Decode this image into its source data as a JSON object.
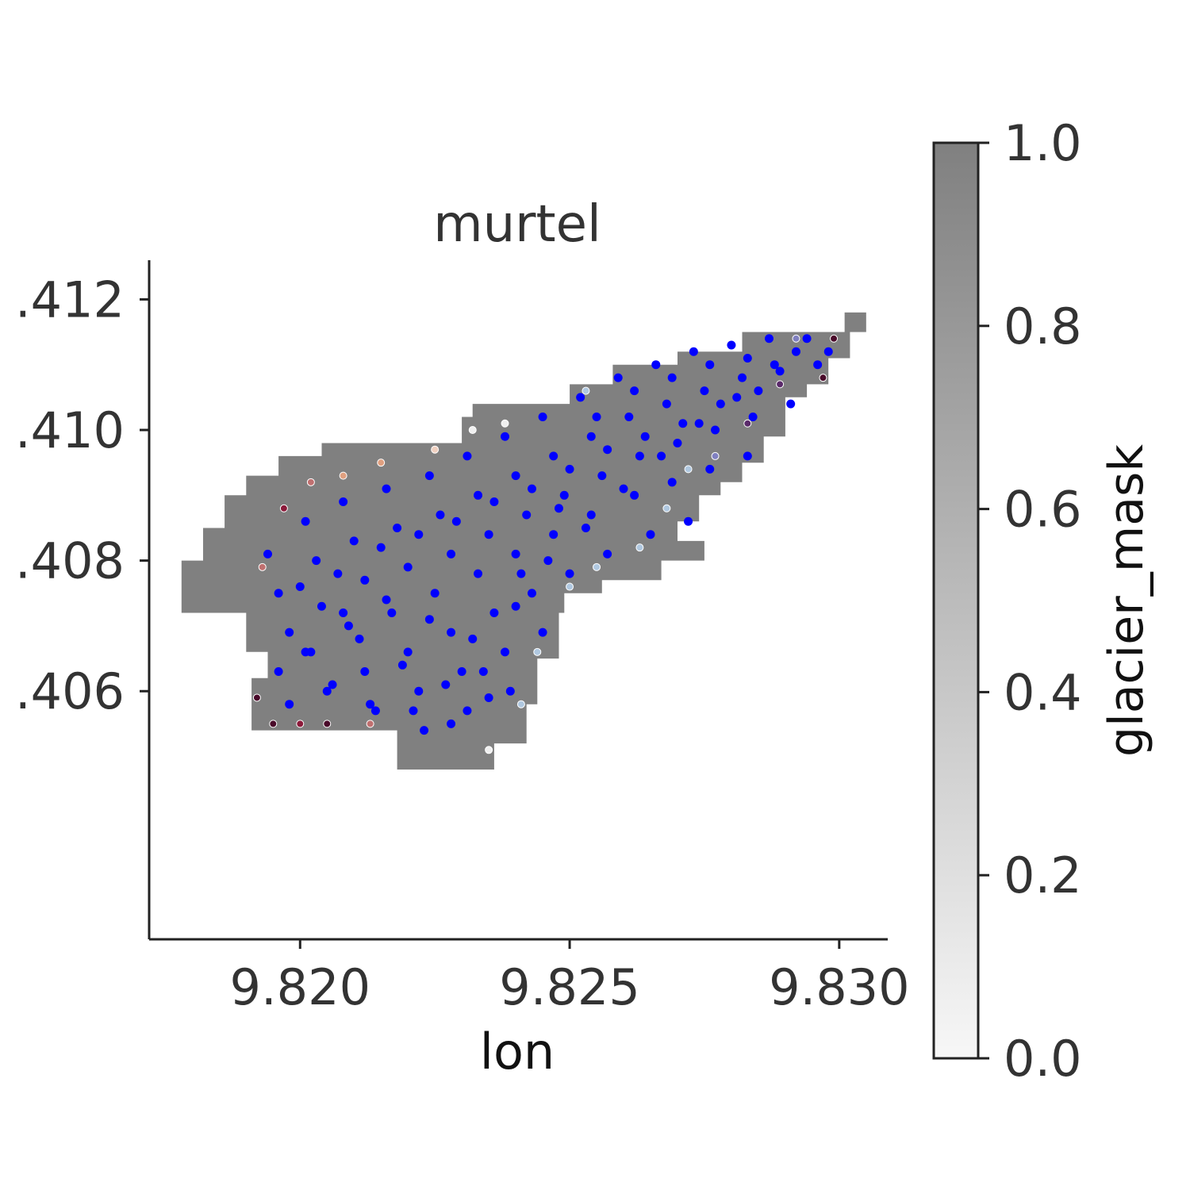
{
  "chart_data": {
    "type": "scatter",
    "title": "murtel",
    "xlabel": "lon",
    "ylabel": "",
    "xlim": [
      9.8172,
      9.8309
    ],
    "ylim": [
      46.4022,
      46.4126
    ],
    "x_ticks": [
      "9.820",
      "9.825",
      "9.830"
    ],
    "x_tick_values": [
      9.82,
      9.825,
      9.83
    ],
    "y_ticks": [
      ".406",
      ".408",
      ".410",
      ".412"
    ],
    "y_tick_values": [
      46.406,
      46.408,
      46.41,
      46.412
    ],
    "grid": false,
    "colorbar": {
      "label": "glacier_mask",
      "range": [
        0,
        1
      ],
      "ticks": [
        "0.0",
        "0.2",
        "0.4",
        "0.6",
        "0.8",
        "1.0"
      ],
      "tick_values": [
        0,
        0.2,
        0.4,
        0.6,
        0.8,
        1.0
      ],
      "colormap": [
        "#f7f7f7",
        "#808080"
      ]
    },
    "glacier_mask_value": 1.0,
    "glacier_mask_region_lon_lat": [
      [
        9.8178,
        46.4072
      ],
      [
        9.8178,
        46.408
      ],
      [
        9.8182,
        46.408
      ],
      [
        9.8182,
        46.4085
      ],
      [
        9.8186,
        46.4085
      ],
      [
        9.8186,
        46.409
      ],
      [
        9.819,
        46.409
      ],
      [
        9.819,
        46.4093
      ],
      [
        9.8196,
        46.4093
      ],
      [
        9.8196,
        46.4096
      ],
      [
        9.8204,
        46.4096
      ],
      [
        9.8204,
        46.4098
      ],
      [
        9.823,
        46.4098
      ],
      [
        9.823,
        46.4102
      ],
      [
        9.8232,
        46.4102
      ],
      [
        9.8232,
        46.4104
      ],
      [
        9.825,
        46.4104
      ],
      [
        9.825,
        46.4107
      ],
      [
        9.8258,
        46.4107
      ],
      [
        9.8258,
        46.411
      ],
      [
        9.827,
        46.411
      ],
      [
        9.827,
        46.4112
      ],
      [
        9.8282,
        46.4112
      ],
      [
        9.8282,
        46.4115
      ],
      [
        9.8302,
        46.4115
      ],
      [
        9.8302,
        46.4111
      ],
      [
        9.8298,
        46.4111
      ],
      [
        9.8298,
        46.4107
      ],
      [
        9.8294,
        46.4107
      ],
      [
        9.8294,
        46.4105
      ],
      [
        9.829,
        46.4105
      ],
      [
        9.829,
        46.4099
      ],
      [
        9.8286,
        46.4099
      ],
      [
        9.8286,
        46.4095
      ],
      [
        9.8282,
        46.4095
      ],
      [
        9.8282,
        46.4092
      ],
      [
        9.8278,
        46.4092
      ],
      [
        9.8278,
        46.409
      ],
      [
        9.8274,
        46.409
      ],
      [
        9.8274,
        46.4086
      ],
      [
        9.827,
        46.4086
      ],
      [
        9.827,
        46.4083
      ],
      [
        9.8275,
        46.4083
      ],
      [
        9.8275,
        46.408
      ],
      [
        9.8267,
        46.408
      ],
      [
        9.8267,
        46.4077
      ],
      [
        9.8256,
        46.4077
      ],
      [
        9.8256,
        46.4075
      ],
      [
        9.8249,
        46.4075
      ],
      [
        9.8249,
        46.4072
      ],
      [
        9.8248,
        46.4072
      ],
      [
        9.8248,
        46.4065
      ],
      [
        9.8244,
        46.4065
      ],
      [
        9.8244,
        46.4058
      ],
      [
        9.8242,
        46.4058
      ],
      [
        9.8242,
        46.4052
      ],
      [
        9.8236,
        46.4052
      ],
      [
        9.8236,
        46.4048
      ],
      [
        9.8218,
        46.4048
      ],
      [
        9.8218,
        46.4054
      ],
      [
        9.8191,
        46.4054
      ],
      [
        9.8191,
        46.4062
      ],
      [
        9.8194,
        46.4062
      ],
      [
        9.8194,
        46.4066
      ],
      [
        9.819,
        46.4066
      ],
      [
        9.819,
        46.4072
      ]
    ],
    "glacier_mask_square_lon_lat": [
      9.8301,
      46.4115,
      9.8305,
      46.4118
    ],
    "series": [
      {
        "name": "",
        "color": "#0000ff",
        "points_lon_lat": [
          [
            9.8194,
            46.4081
          ],
          [
            9.8196,
            46.4075
          ],
          [
            9.8198,
            46.4069
          ],
          [
            9.8196,
            46.4063
          ],
          [
            9.8198,
            46.4058
          ],
          [
            9.8201,
            46.4086
          ],
          [
            9.8203,
            46.408
          ],
          [
            9.8204,
            46.4073
          ],
          [
            9.8202,
            46.4066
          ],
          [
            9.8205,
            46.406
          ],
          [
            9.8208,
            46.4089
          ],
          [
            9.821,
            46.4083
          ],
          [
            9.8212,
            46.4077
          ],
          [
            9.8209,
            46.407
          ],
          [
            9.8212,
            46.4063
          ],
          [
            9.8214,
            46.4057
          ],
          [
            9.8216,
            46.4091
          ],
          [
            9.8218,
            46.4085
          ],
          [
            9.822,
            46.4079
          ],
          [
            9.8217,
            46.4072
          ],
          [
            9.822,
            46.4066
          ],
          [
            9.8222,
            46.406
          ],
          [
            9.8223,
            46.4054
          ],
          [
            9.8224,
            46.4093
          ],
          [
            9.8226,
            46.4087
          ],
          [
            9.8228,
            46.4081
          ],
          [
            9.8225,
            46.4075
          ],
          [
            9.8228,
            46.4069
          ],
          [
            9.823,
            46.4063
          ],
          [
            9.8231,
            46.4057
          ],
          [
            9.8231,
            46.4096
          ],
          [
            9.8233,
            46.409
          ],
          [
            9.8235,
            46.4084
          ],
          [
            9.8233,
            46.4078
          ],
          [
            9.8236,
            46.4072
          ],
          [
            9.8238,
            46.4066
          ],
          [
            9.8239,
            46.406
          ],
          [
            9.8238,
            46.4099
          ],
          [
            9.824,
            46.4093
          ],
          [
            9.8242,
            46.4087
          ],
          [
            9.824,
            46.4081
          ],
          [
            9.8243,
            46.4075
          ],
          [
            9.8245,
            46.4069
          ],
          [
            9.8245,
            46.4102
          ],
          [
            9.8247,
            46.4096
          ],
          [
            9.8249,
            46.409
          ],
          [
            9.8247,
            46.4084
          ],
          [
            9.825,
            46.4078
          ],
          [
            9.8252,
            46.4105
          ],
          [
            9.8254,
            46.4099
          ],
          [
            9.8256,
            46.4093
          ],
          [
            9.8254,
            46.4087
          ],
          [
            9.8257,
            46.4081
          ],
          [
            9.8259,
            46.4108
          ],
          [
            9.8261,
            46.4102
          ],
          [
            9.8263,
            46.4096
          ],
          [
            9.8262,
            46.409
          ],
          [
            9.8265,
            46.4084
          ],
          [
            9.8266,
            46.411
          ],
          [
            9.8268,
            46.4104
          ],
          [
            9.827,
            46.4098
          ],
          [
            9.8269,
            46.4092
          ],
          [
            9.8272,
            46.4086
          ],
          [
            9.8273,
            46.4112
          ],
          [
            9.8275,
            46.4106
          ],
          [
            9.8277,
            46.41
          ],
          [
            9.8276,
            46.4094
          ],
          [
            9.828,
            46.4113
          ],
          [
            9.8282,
            46.4108
          ],
          [
            9.8284,
            46.4102
          ],
          [
            9.8283,
            46.4096
          ],
          [
            9.8287,
            46.4114
          ],
          [
            9.8289,
            46.4109
          ],
          [
            9.8291,
            46.4104
          ],
          [
            9.8294,
            46.4114
          ],
          [
            9.8296,
            46.411
          ],
          [
            9.8298,
            46.4112
          ],
          [
            9.8285,
            46.4106
          ],
          [
            9.8278,
            46.4104
          ],
          [
            9.8271,
            46.4101
          ],
          [
            9.8264,
            46.4099
          ],
          [
            9.8257,
            46.4097
          ],
          [
            9.825,
            46.4094
          ],
          [
            9.8243,
            46.4091
          ],
          [
            9.8236,
            46.4089
          ],
          [
            9.8229,
            46.4086
          ],
          [
            9.8222,
            46.4084
          ],
          [
            9.8215,
            46.4082
          ],
          [
            9.8207,
            46.4078
          ],
          [
            9.82,
            46.4076
          ],
          [
            9.8211,
            46.4068
          ],
          [
            9.8219,
            46.4064
          ],
          [
            9.8227,
            46.4061
          ],
          [
            9.8235,
            46.4059
          ],
          [
            9.8232,
            46.4068
          ],
          [
            9.824,
            46.4073
          ],
          [
            9.8246,
            46.408
          ],
          [
            9.8253,
            46.4085
          ],
          [
            9.826,
            46.4091
          ],
          [
            9.8267,
            46.4096
          ],
          [
            9.8274,
            46.4101
          ],
          [
            9.8281,
            46.4105
          ],
          [
            9.8288,
            46.411
          ],
          [
            9.8292,
            46.4112
          ],
          [
            9.8224,
            46.4071
          ],
          [
            9.8216,
            46.4074
          ],
          [
            9.8208,
            46.4072
          ],
          [
            9.8201,
            46.4066
          ],
          [
            9.8206,
            46.4061
          ],
          [
            9.8213,
            46.4058
          ],
          [
            9.8221,
            46.4057
          ],
          [
            9.8228,
            46.4055
          ],
          [
            9.8234,
            46.4063
          ],
          [
            9.8241,
            46.4078
          ],
          [
            9.8248,
            46.4088
          ],
          [
            9.8255,
            46.4102
          ],
          [
            9.8262,
            46.4106
          ],
          [
            9.8269,
            46.4108
          ],
          [
            9.8276,
            46.411
          ],
          [
            9.8283,
            46.4111
          ]
        ]
      }
    ],
    "colored_points": [
      {
        "lon": 9.8193,
        "lat": 46.4079,
        "value": 0.9,
        "color": "#c07070"
      },
      {
        "lon": 9.8197,
        "lat": 46.4088,
        "value": 0.95,
        "color": "#8b1a3a"
      },
      {
        "lon": 9.8202,
        "lat": 46.4092,
        "value": 0.9,
        "color": "#c07070"
      },
      {
        "lon": 9.8208,
        "lat": 46.4093,
        "value": 0.8,
        "color": "#e0a080"
      },
      {
        "lon": 9.8215,
        "lat": 46.4095,
        "value": 0.8,
        "color": "#e0a080"
      },
      {
        "lon": 9.8225,
        "lat": 46.4097,
        "value": 0.7,
        "color": "#f0d0c0"
      },
      {
        "lon": 9.8232,
        "lat": 46.41,
        "value": 0.6,
        "color": "#f0f0f0"
      },
      {
        "lon": 9.8192,
        "lat": 46.4059,
        "value": 1.0,
        "color": "#4a0a2a"
      },
      {
        "lon": 9.8195,
        "lat": 46.4055,
        "value": 1.0,
        "color": "#4a0a2a"
      },
      {
        "lon": 9.82,
        "lat": 46.4055,
        "value": 0.95,
        "color": "#8b1a3a"
      },
      {
        "lon": 9.8205,
        "lat": 46.4055,
        "value": 1.0,
        "color": "#4a0a2a"
      },
      {
        "lon": 9.8213,
        "lat": 46.4055,
        "value": 0.9,
        "color": "#c07070"
      },
      {
        "lon": 9.8235,
        "lat": 46.4051,
        "value": 0.5,
        "color": "#f0f0f0"
      },
      {
        "lon": 9.8241,
        "lat": 46.4058,
        "value": 0.4,
        "color": "#b0c8e0"
      },
      {
        "lon": 9.8244,
        "lat": 46.4066,
        "value": 0.4,
        "color": "#b0c8e0"
      },
      {
        "lon": 9.825,
        "lat": 46.4076,
        "value": 0.4,
        "color": "#b0c8e0"
      },
      {
        "lon": 9.8255,
        "lat": 46.4079,
        "value": 0.4,
        "color": "#b0c8e0"
      },
      {
        "lon": 9.8263,
        "lat": 46.4082,
        "value": 0.4,
        "color": "#b0c8e0"
      },
      {
        "lon": 9.8268,
        "lat": 46.4088,
        "value": 0.4,
        "color": "#b0c8e0"
      },
      {
        "lon": 9.8272,
        "lat": 46.4094,
        "value": 0.4,
        "color": "#b0c8e0"
      },
      {
        "lon": 9.8277,
        "lat": 46.4096,
        "value": 0.5,
        "color": "#8080c0"
      },
      {
        "lon": 9.8283,
        "lat": 46.4101,
        "value": 0.8,
        "color": "#5a2a6a"
      },
      {
        "lon": 9.8289,
        "lat": 46.4107,
        "value": 0.9,
        "color": "#5a2a6a"
      },
      {
        "lon": 9.8297,
        "lat": 46.4108,
        "value": 1.0,
        "color": "#4a0a2a"
      },
      {
        "lon": 9.8299,
        "lat": 46.4114,
        "value": 1.0,
        "color": "#4a0a2a"
      },
      {
        "lon": 9.8292,
        "lat": 46.4114,
        "value": 0.5,
        "color": "#8080c0"
      },
      {
        "lon": 9.8253,
        "lat": 46.4106,
        "value": 0.3,
        "color": "#b0c8e0"
      },
      {
        "lon": 9.8238,
        "lat": 46.4101,
        "value": 0.6,
        "color": "#f0f0f0"
      }
    ]
  }
}
